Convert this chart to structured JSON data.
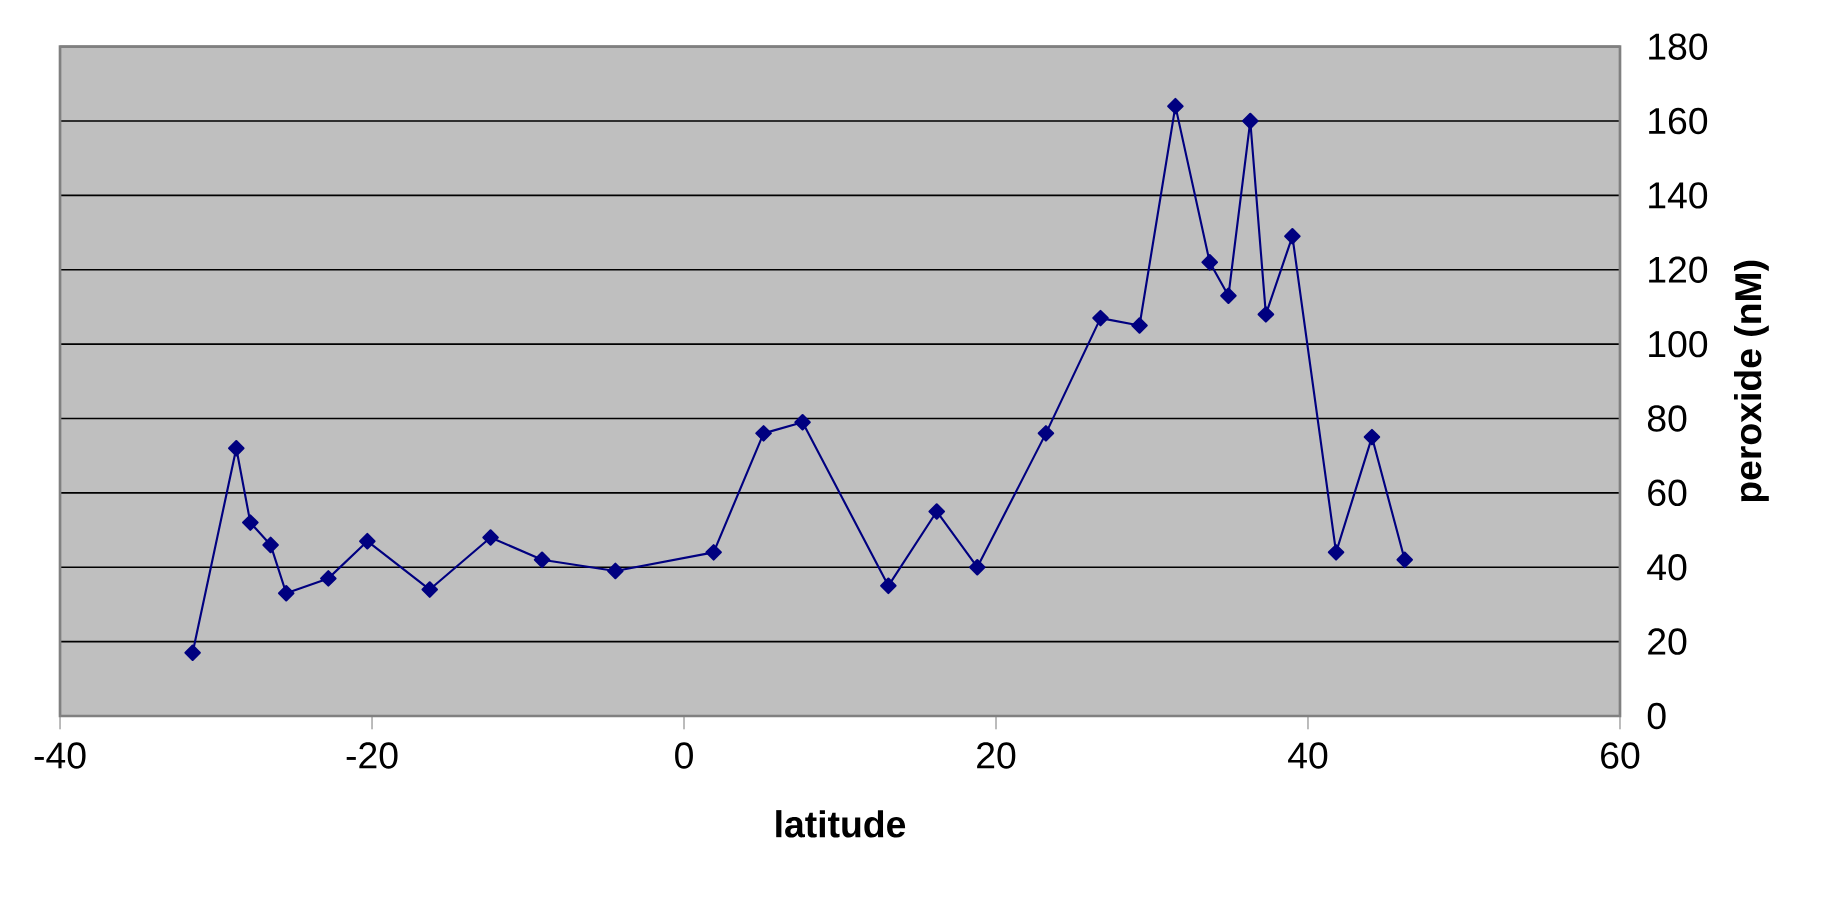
{
  "chart_data": {
    "type": "line",
    "xlabel": "latitude",
    "ylabel": "peroxide (nM)",
    "x": [
      -31.5,
      -28.7,
      -27.8,
      -26.5,
      -25.5,
      -22.8,
      -20.3,
      -16.3,
      -12.4,
      -9.1,
      -4.4,
      1.9,
      5.1,
      7.6,
      13.1,
      16.2,
      18.8,
      23.2,
      26.7,
      29.2,
      31.5,
      33.7,
      34.9,
      36.3,
      37.3,
      39.0,
      41.8,
      44.1,
      46.2
    ],
    "series": [
      {
        "color": "#000080",
        "values": [
          17,
          72,
          52,
          46,
          33,
          37,
          47,
          34,
          48,
          42,
          39,
          44,
          76,
          79,
          35,
          55,
          40,
          76,
          107,
          105,
          164,
          122,
          113,
          160,
          108,
          129,
          44,
          75,
          42
        ]
      }
    ],
    "xlim": [
      -40,
      60
    ],
    "xticks": [
      -40,
      -20,
      0,
      20,
      40,
      60
    ],
    "ylim": [
      0,
      180
    ],
    "yticks": [
      0,
      20,
      40,
      60,
      80,
      100,
      120,
      140,
      160,
      180
    ],
    "grid": "y",
    "marker": "diamond",
    "line_style": "solid"
  }
}
